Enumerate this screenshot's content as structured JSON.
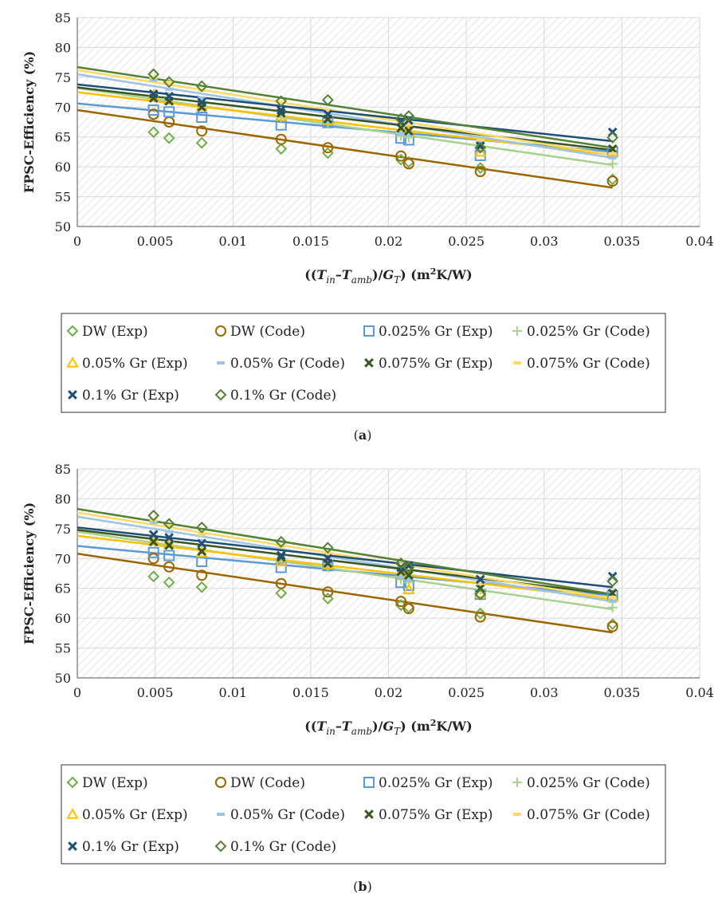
{
  "chart_data": [
    {
      "type": "scatter",
      "panel_label": "a",
      "xlabel": {
        "pre": "((",
        "t1": "T",
        "s1": "in",
        "dash": "–",
        "t2": "T",
        "s2": "amb",
        "mid": ")/",
        "t3": "G",
        "s3": "T",
        "post": ") (m",
        "sup": "2",
        "end": "K/W)"
      },
      "ylabel": "FPSC-Efficiency (%)",
      "xlim": [
        0,
        0.04
      ],
      "ylim": [
        50,
        85
      ],
      "xticks": [
        "0",
        "0.005",
        "0.01",
        "0.015",
        "0.02",
        "0.025",
        "0.03",
        "0.035",
        "0.04"
      ],
      "yticks": [
        "50",
        "55",
        "60",
        "65",
        "70",
        "75",
        "80",
        "85"
      ],
      "x": [
        0.0049,
        0.0059,
        0.008,
        0.0131,
        0.0161,
        0.0208,
        0.0213,
        0.0259,
        0.0344
      ],
      "legend_rows": [
        [
          0,
          1,
          2,
          3
        ],
        [
          4,
          5,
          6,
          7
        ],
        [
          8,
          9
        ]
      ],
      "series": [
        {
          "name": "DW (Exp)",
          "color": "#70ad47",
          "marker": "diamond",
          "values": [
            65.8,
            64.8,
            64.0,
            63.0,
            62.3,
            61.2,
            60.8,
            59.8,
            57.9
          ]
        },
        {
          "name": "DW (Code)",
          "color": "#9c6500",
          "marker": "circle",
          "fit": [
            69.5,
            56.5
          ],
          "values": [
            68.8,
            67.5,
            66.0,
            64.6,
            63.2,
            61.8,
            60.5,
            59.2,
            57.6
          ]
        },
        {
          "name": "0.025% Gr (Exp)",
          "color": "#5b9bd5",
          "marker": "square",
          "fit": [
            70.6,
            62.5
          ],
          "values": [
            69.5,
            69.2,
            68.3,
            67.0,
            67.4,
            64.8,
            64.5,
            61.9,
            62.5
          ]
        },
        {
          "name": "0.025% Gr (Code)",
          "color": "#a9d18e",
          "marker": "plus",
          "fit": [
            73.2,
            60.3
          ],
          "values": [
            72.0,
            71.5,
            70.2,
            68.3,
            67.2,
            65.2,
            64.9,
            63.5,
            60.5
          ]
        },
        {
          "name": "0.05% Gr (Exp)",
          "color": "#ffc000",
          "marker": "triangle",
          "fit": [
            72.5,
            62.0
          ],
          "values": [
            72.0,
            71.2,
            70.2,
            68.5,
            67.8,
            66.2,
            65.8,
            62.5,
            62.5
          ]
        },
        {
          "name": "0.05% Gr (Code)",
          "color": "#9dc3e6",
          "marker": "dash",
          "fit": [
            75.5,
            61.5
          ],
          "values": [
            74.5,
            73.0,
            71.5,
            69.0,
            67.5,
            65.5,
            65.2,
            64.0,
            61.5
          ]
        },
        {
          "name": "0.075% Gr (Exp)",
          "color": "#375623",
          "marker": "x",
          "fit": [
            73.3,
            62.8
          ],
          "values": [
            71.5,
            71.0,
            70.0,
            69.0,
            68.0,
            66.5,
            66.0,
            63.5,
            63.0
          ]
        },
        {
          "name": "0.075% Gr (Code)",
          "color": "#ffd966",
          "marker": "dash",
          "fit": [
            76.2,
            62.0
          ],
          "values": [
            75.0,
            74.2,
            72.8,
            70.8,
            69.5,
            67.5,
            67.0,
            64.5,
            62.2
          ]
        },
        {
          "name": "0.1% Gr (Exp)",
          "color": "#1f4e79",
          "marker": "x",
          "fit": [
            73.8,
            64.3
          ],
          "values": [
            72.2,
            71.8,
            70.8,
            69.5,
            68.8,
            67.5,
            67.8,
            63.5,
            65.8
          ]
        },
        {
          "name": "0.1% Gr (Code)",
          "color": "#548235",
          "marker": "diamond",
          "fit": [
            76.7,
            63.2
          ],
          "values": [
            75.5,
            74.2,
            73.5,
            71.0,
            71.2,
            68.0,
            68.5,
            63.2,
            64.9
          ]
        }
      ]
    },
    {
      "type": "scatter",
      "panel_label": "b",
      "xlabel": {
        "pre": "((",
        "t1": "T",
        "s1": "in",
        "dash": "–",
        "t2": "T",
        "s2": "amb",
        "mid": ")/",
        "t3": "G",
        "s3": "T",
        "post": ") (m",
        "sup": "2",
        "end": "K/W)"
      },
      "ylabel": "FPSC-Efficiency (%)",
      "xlim": [
        0,
        0.04
      ],
      "ylim": [
        50,
        85
      ],
      "xticks": [
        "0",
        "0.005",
        "0.01",
        "0.015",
        "0.02",
        "0.025",
        "0.03",
        "0.035",
        "0.04"
      ],
      "yticks": [
        "50",
        "55",
        "60",
        "65",
        "70",
        "75",
        "80",
        "85"
      ],
      "x": [
        0.0049,
        0.0059,
        0.008,
        0.0131,
        0.0161,
        0.0208,
        0.0213,
        0.0259,
        0.0344
      ],
      "legend_rows": [
        [
          0,
          1,
          2,
          3
        ],
        [
          4,
          5,
          6,
          7
        ],
        [
          8,
          9
        ]
      ],
      "series": [
        {
          "name": "DW (Exp)",
          "color": "#70ad47",
          "marker": "diamond",
          "values": [
            67.0,
            66.0,
            65.2,
            64.2,
            63.3,
            62.2,
            61.8,
            60.8,
            59.0
          ]
        },
        {
          "name": "DW (Code)",
          "color": "#9c6500",
          "marker": "circle",
          "fit": [
            70.8,
            57.6
          ],
          "values": [
            70.0,
            68.6,
            67.2,
            65.8,
            64.4,
            62.8,
            61.6,
            60.2,
            58.6
          ]
        },
        {
          "name": "0.025% Gr (Exp)",
          "color": "#5b9bd5",
          "marker": "square",
          "fit": [
            72.1,
            63.8
          ],
          "values": [
            71.0,
            70.5,
            69.5,
            68.5,
            68.8,
            66.0,
            65.5,
            64.0,
            63.8
          ]
        },
        {
          "name": "0.025% Gr (Code)",
          "color": "#a9d18e",
          "marker": "plus",
          "fit": [
            74.5,
            61.5
          ],
          "values": [
            73.2,
            72.8,
            71.5,
            69.5,
            68.5,
            66.5,
            66.0,
            64.8,
            61.8
          ]
        },
        {
          "name": "0.05% Gr (Exp)",
          "color": "#ffc000",
          "marker": "triangle",
          "fit": [
            73.8,
            63.2
          ],
          "values": [
            73.0,
            72.5,
            71.0,
            69.5,
            69.0,
            67.5,
            64.8,
            64.2,
            63.5
          ]
        },
        {
          "name": "0.05% Gr (Code)",
          "color": "#9dc3e6",
          "marker": "dash",
          "fit": [
            77.0,
            62.8
          ],
          "values": [
            76.0,
            74.5,
            73.0,
            70.5,
            69.0,
            67.0,
            66.5,
            65.5,
            62.8
          ]
        },
        {
          "name": "0.075% Gr (Exp)",
          "color": "#375623",
          "marker": "x",
          "fit": [
            74.8,
            64.0
          ],
          "values": [
            72.8,
            72.2,
            71.2,
            70.2,
            69.2,
            67.8,
            67.2,
            65.0,
            64.2
          ]
        },
        {
          "name": "0.075% Gr (Code)",
          "color": "#ffd966",
          "marker": "dash",
          "fit": [
            77.7,
            63.3
          ],
          "values": [
            76.5,
            75.5,
            74.0,
            72.0,
            70.8,
            69.0,
            68.4,
            65.8,
            63.5
          ]
        },
        {
          "name": "0.1% Gr (Exp)",
          "color": "#1f4e79",
          "marker": "x",
          "fit": [
            75.2,
            65.2
          ],
          "values": [
            74.0,
            73.5,
            72.5,
            70.5,
            70.0,
            68.5,
            68.8,
            66.5,
            67.0
          ]
        },
        {
          "name": "0.1% Gr (Code)",
          "color": "#548235",
          "marker": "diamond",
          "fit": [
            78.3,
            64.0
          ],
          "values": [
            77.2,
            75.8,
            75.2,
            72.8,
            71.8,
            69.2,
            68.5,
            64.0,
            66.2
          ]
        }
      ]
    }
  ]
}
